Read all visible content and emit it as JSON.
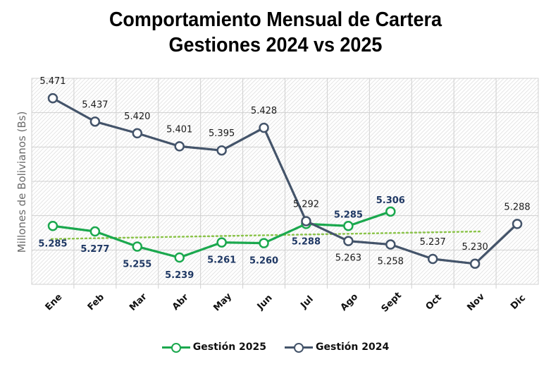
{
  "chart_data": {
    "type": "line",
    "title": "Comportamiento Mensual de Cartera",
    "subtitle": "Gestiones 2024 vs 2025",
    "xlabel": "",
    "ylabel": "Millones de Bolivianos (Bs)",
    "ylim": [
      5.2,
      5.5
    ],
    "ygrid_step": 0.05,
    "y_tick_labels_visible": false,
    "grid": true,
    "legend_position": "bottom",
    "categories": [
      "Ene",
      "Feb",
      "Mar",
      "Abr",
      "May",
      "Jun",
      "Jul",
      "Ago",
      "Sept",
      "Oct",
      "Nov",
      "Dic"
    ],
    "series": [
      {
        "name": "Gestión 2025",
        "color": "#1ba84e",
        "label_color": "#1f3864",
        "values": [
          5.285,
          5.277,
          5.255,
          5.239,
          5.261,
          5.26,
          5.288,
          5.285,
          5.306,
          null,
          null,
          null
        ],
        "labels": [
          "5.285",
          "5.277",
          "5.255",
          "5.239",
          "5.261",
          "5.260",
          "5.288",
          "5.285",
          "5.306",
          null,
          null,
          null
        ],
        "label_pos": [
          "below",
          "below",
          "below",
          "below",
          "below",
          "below",
          "below",
          "above",
          "above",
          null,
          null,
          null
        ]
      },
      {
        "name": "Gestión 2024",
        "color": "#44546a",
        "label_color": "#1a1a1a",
        "values": [
          5.471,
          5.437,
          5.42,
          5.401,
          5.395,
          5.428,
          5.292,
          5.263,
          5.258,
          5.237,
          5.23,
          5.288
        ],
        "labels": [
          "5.471",
          "5.437",
          "5.420",
          "5.401",
          "5.395",
          "5.428",
          "5.292",
          "5.263",
          "5.258",
          "5.237",
          "5.230",
          "5.288"
        ],
        "label_pos": [
          "above",
          "above",
          "above",
          "above",
          "above",
          "above",
          "above",
          "below",
          "below",
          "above",
          "above",
          "above"
        ]
      }
    ],
    "trendline": {
      "of_series": "Gestión 2025",
      "style": "dotted",
      "color": "#8bc34a",
      "from_category": "Ene",
      "to_category": "Nov",
      "start_value": 5.266,
      "end_value": 5.277
    }
  }
}
